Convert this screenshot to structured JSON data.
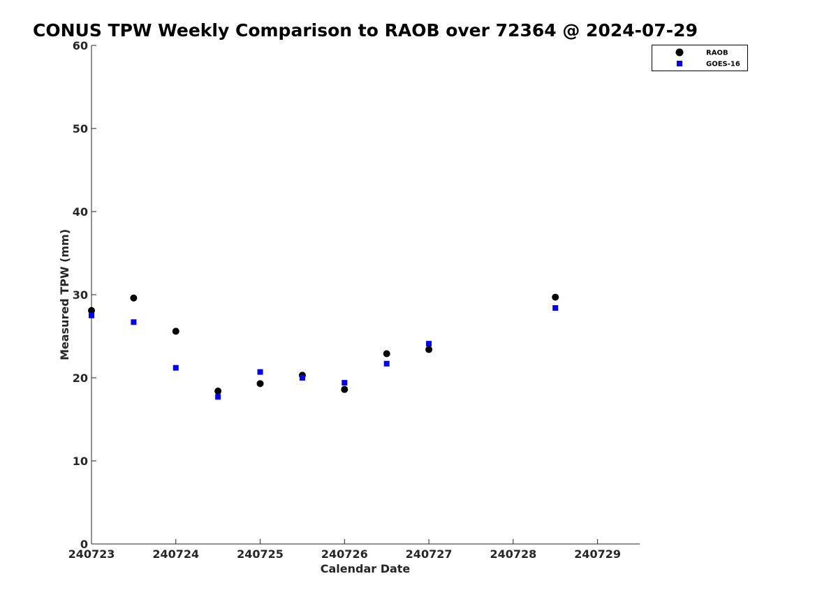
{
  "chart_data": {
    "type": "scatter",
    "title": "CONUS TPW Weekly Comparison to RAOB over 72364 @ 2024-07-29",
    "xlabel": "Calendar Date",
    "ylabel": "Measured TPW (mm)",
    "xlim": [
      240723,
      240729.5
    ],
    "ylim": [
      0,
      60
    ],
    "xticks": [
      240723,
      240724,
      240725,
      240726,
      240727,
      240728,
      240729
    ],
    "xtick_labels": [
      "240723",
      "240724",
      "240725",
      "240726",
      "240727",
      "240728",
      "240729"
    ],
    "yticks": [
      0,
      10,
      20,
      30,
      40,
      50,
      60
    ],
    "ytick_labels": [
      "0",
      "10",
      "20",
      "30",
      "40",
      "50",
      "60"
    ],
    "grid": false,
    "legend_position": "top-right",
    "series": [
      {
        "name": "RAOB",
        "marker": "circle",
        "color": "#000000",
        "points": [
          {
            "x": 240723.0,
            "y": 28.1
          },
          {
            "x": 240723.5,
            "y": 29.6
          },
          {
            "x": 240724.0,
            "y": 25.6
          },
          {
            "x": 240724.5,
            "y": 18.4
          },
          {
            "x": 240725.0,
            "y": 19.3
          },
          {
            "x": 240725.5,
            "y": 20.3
          },
          {
            "x": 240726.0,
            "y": 18.6
          },
          {
            "x": 240726.5,
            "y": 22.9
          },
          {
            "x": 240727.0,
            "y": 23.4
          },
          {
            "x": 240728.5,
            "y": 29.7
          }
        ]
      },
      {
        "name": "GOES-16",
        "marker": "square",
        "color": "#0000ff",
        "points": [
          {
            "x": 240723.0,
            "y": 27.5
          },
          {
            "x": 240723.5,
            "y": 26.7
          },
          {
            "x": 240724.0,
            "y": 21.2
          },
          {
            "x": 240724.5,
            "y": 17.7
          },
          {
            "x": 240725.0,
            "y": 20.7
          },
          {
            "x": 240725.5,
            "y": 20.0
          },
          {
            "x": 240726.0,
            "y": 19.4
          },
          {
            "x": 240726.5,
            "y": 21.7
          },
          {
            "x": 240727.0,
            "y": 24.1
          },
          {
            "x": 240728.5,
            "y": 28.4
          }
        ]
      }
    ]
  }
}
